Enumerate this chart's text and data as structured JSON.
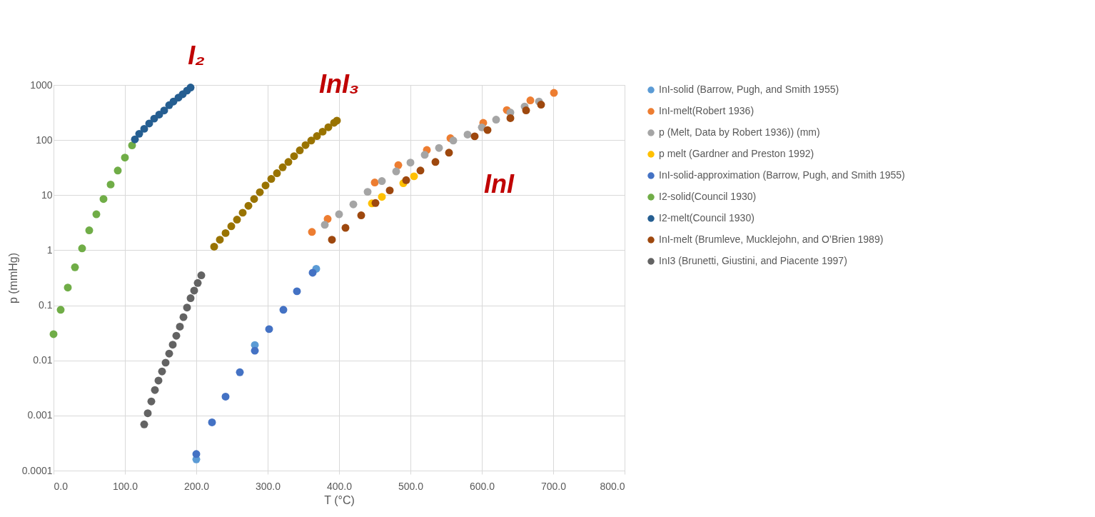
{
  "chart_data": {
    "type": "scatter",
    "xlabel": "T (°C)",
    "ylabel": "p (mmHg)",
    "annotations": [
      "I₂",
      "InI₃",
      "InI"
    ],
    "xlim": [
      0,
      800
    ],
    "xticks": [
      {
        "value": 0,
        "label": "0.0"
      },
      {
        "value": 100,
        "label": "100.0"
      },
      {
        "value": 200,
        "label": "200.0"
      },
      {
        "value": 300,
        "label": "300.0"
      },
      {
        "value": 400,
        "label": "400.0"
      },
      {
        "value": 500,
        "label": "500.0"
      },
      {
        "value": 600,
        "label": "600.0"
      },
      {
        "value": 700,
        "label": "700.0"
      },
      {
        "value": 800,
        "label": "800.0"
      }
    ],
    "ylim": [
      0.0001,
      1000
    ],
    "yticks": [
      0.0001,
      0.001,
      0.01,
      0.1,
      1,
      10,
      100,
      1000
    ],
    "log": "y",
    "grid": true,
    "legend": "right",
    "marker": "circle",
    "series": [
      {
        "name": "InI-solid  (Barrow, Pugh, and Smith 1955)",
        "color": "#5b9bd5",
        "x": [
          200,
          282,
          368
        ],
        "values": [
          0.00016,
          0.019,
          0.46
        ]
      },
      {
        "name": "InI-melt(Robert 1936)",
        "color": "#ed7d31",
        "x": [
          362,
          384,
          417,
          450,
          483,
          523,
          556,
          602,
          635,
          668,
          701
        ],
        "values": [
          2.15,
          3.7,
          null,
          17,
          35,
          66,
          108,
          205,
          350,
          525,
          720
        ]
      },
      {
        "name": "p (Melt, Data by Robert 1936)) (mm)",
        "color": "#a5a5a5",
        "x": [
          380,
          400,
          420,
          440,
          460,
          480,
          500,
          520,
          540,
          560,
          580,
          600,
          620,
          640,
          660,
          680
        ],
        "values": [
          2.9,
          4.5,
          6.8,
          11.5,
          18,
          27,
          39,
          54,
          72,
          98,
          126,
          170,
          235,
          316,
          407,
          500
        ]
      },
      {
        "name": "p melt (Gardner and Preston 1992)",
        "color": "#ffc000",
        "x": [
          446,
          460,
          475,
          490,
          505
        ],
        "values": [
          7.1,
          9.3,
          null,
          16.5,
          22
        ]
      },
      {
        "name": "InI-solid-approximation (Barrow, Pugh, and Smith 1955)",
        "color": "#4472c4",
        "x": [
          200,
          222,
          241,
          261,
          282,
          302,
          322,
          341,
          363
        ],
        "values": [
          0.0002,
          0.00075,
          0.0022,
          0.0061,
          0.015,
          0.037,
          0.083,
          0.18,
          0.39
        ]
      },
      {
        "name": "I2-solid(Council 1930)",
        "color": "#70ad47",
        "x": [
          0,
          10,
          20,
          30,
          40,
          50,
          60,
          70,
          80,
          90,
          100,
          110
        ],
        "values": [
          0.03,
          0.083,
          0.21,
          0.49,
          1.08,
          2.3,
          4.5,
          8.5,
          15.6,
          28,
          48,
          80
        ]
      },
      {
        "name": "I2-melt(Council 1930)",
        "color": "#255e91",
        "x": [
          114,
          120,
          127,
          134,
          141,
          148,
          155,
          162,
          168,
          175,
          181,
          187,
          192
        ],
        "values": [
          103,
          130,
          160,
          200,
          245,
          290,
          345,
          430,
          500,
          590,
          680,
          790,
          900
        ]
      },
      {
        "name": "InI-melt (Brumleve, Mucklejohn, and O’Brien 1989)",
        "color": "#9e480e",
        "x": [
          390,
          409,
          431,
          451,
          471,
          494,
          514,
          535,
          554,
          590,
          608,
          640,
          662,
          683
        ],
        "values": [
          1.55,
          2.55,
          4.3,
          7.2,
          12.2,
          18.7,
          28,
          40,
          59,
          117,
          152,
          250,
          346,
          440
        ]
      },
      {
        "name": "InI3 (Brunetti, Giustini, and Piacente 1997)",
        "color": "#636363",
        "x": [
          127,
          132,
          137,
          142,
          147,
          152,
          157,
          162,
          167,
          172,
          177,
          182,
          187,
          192,
          197,
          202,
          207
        ],
        "values": [
          0.00069,
          0.0011,
          0.0018,
          0.0029,
          0.0043,
          0.0063,
          0.0091,
          0.0133,
          0.0193,
          0.028,
          0.041,
          0.061,
          0.091,
          0.135,
          0.185,
          0.254,
          0.35
        ]
      },
      {
        "color": "#997300",
        "x": [
          225,
          233,
          241,
          249,
          257,
          265,
          273,
          281,
          289,
          297,
          305,
          313,
          321,
          329,
          337,
          345,
          353,
          361,
          369,
          377,
          385,
          393,
          397
        ],
        "values": [
          1.16,
          1.55,
          2.05,
          2.73,
          3.6,
          4.8,
          6.4,
          8.5,
          11.3,
          15,
          19.7,
          25,
          32,
          40,
          51,
          65,
          81,
          98,
          118,
          142,
          171,
          206,
          225
        ]
      }
    ]
  }
}
